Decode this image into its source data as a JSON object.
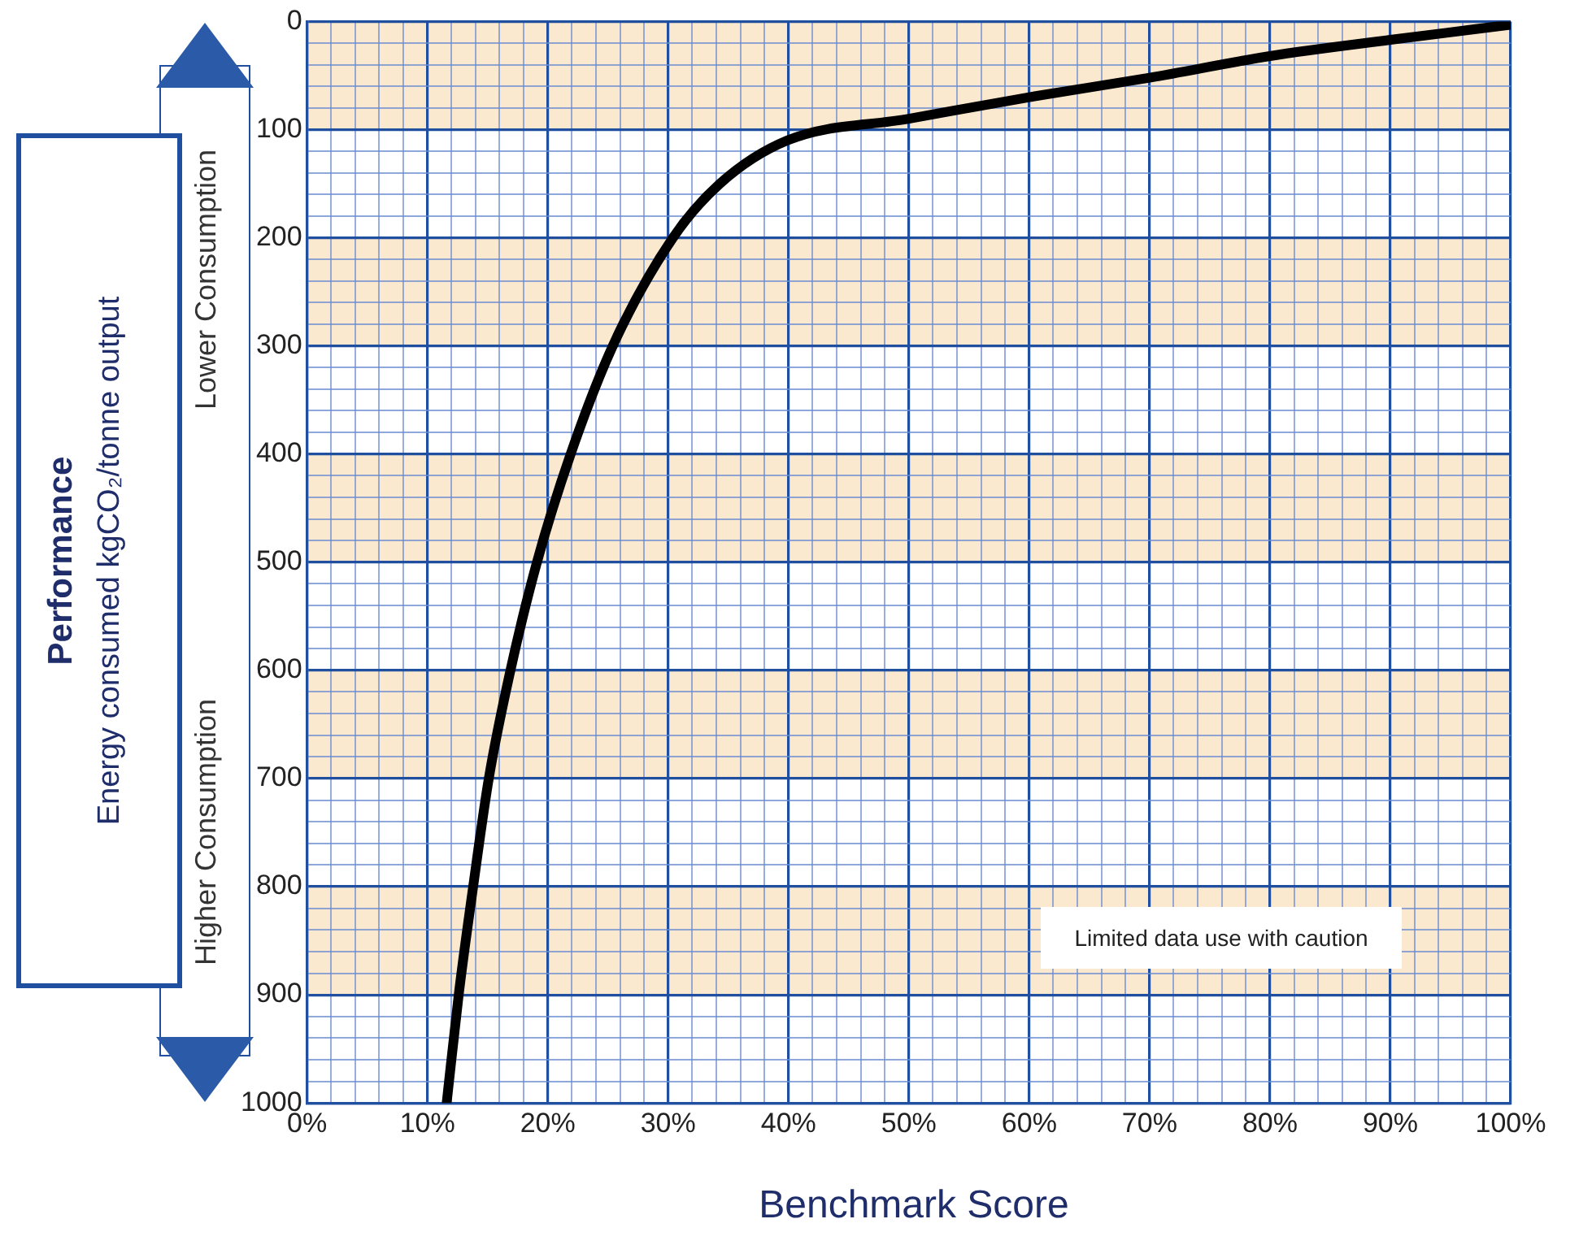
{
  "chart_data": {
    "type": "line",
    "title": "Performance",
    "ylabel": "Energy consumed kgCO₂/tonne output",
    "xlabel": "Benchmark Score",
    "annotations": [
      "Lower Consumption",
      "Higher Consumption",
      "Limited data use with caution"
    ],
    "series": [
      {
        "color": "#000000",
        "x": [
          11.6,
          12.6,
          13.8,
          15.1,
          16.9,
          19.1,
          21.9,
          25.4,
          30.4,
          34.3,
          39.9,
          50,
          60,
          70,
          80,
          90,
          100
        ],
        "values": [
          1000,
          900,
          800,
          700,
          600,
          500,
          400,
          300,
          200,
          150,
          110,
          90,
          70,
          52,
          32,
          17,
          3
        ]
      }
    ],
    "xlim": [
      0,
      100
    ],
    "xticks": [
      {
        "value": 0,
        "label": "0%"
      },
      {
        "value": 2,
        "label": null
      },
      {
        "value": 4,
        "label": null
      },
      {
        "value": 6,
        "label": null
      },
      {
        "value": 8,
        "label": null
      },
      {
        "value": 10,
        "label": "10%"
      },
      {
        "value": 12,
        "label": null
      },
      {
        "value": 14,
        "label": null
      },
      {
        "value": 16,
        "label": null
      },
      {
        "value": 18,
        "label": null
      },
      {
        "value": 20,
        "label": "20%"
      },
      {
        "value": 22,
        "label": null
      },
      {
        "value": 24,
        "label": null
      },
      {
        "value": 26,
        "label": null
      },
      {
        "value": 28,
        "label": null
      },
      {
        "value": 30,
        "label": "30%"
      },
      {
        "value": 32,
        "label": null
      },
      {
        "value": 34,
        "label": null
      },
      {
        "value": 36,
        "label": null
      },
      {
        "value": 38,
        "label": null
      },
      {
        "value": 40,
        "label": "40%"
      },
      {
        "value": 42,
        "label": null
      },
      {
        "value": 44,
        "label": null
      },
      {
        "value": 46,
        "label": null
      },
      {
        "value": 48,
        "label": null
      },
      {
        "value": 50,
        "label": "50%"
      },
      {
        "value": 52,
        "label": null
      },
      {
        "value": 54,
        "label": null
      },
      {
        "value": 56,
        "label": null
      },
      {
        "value": 58,
        "label": null
      },
      {
        "value": 60,
        "label": "60%"
      },
      {
        "value": 62,
        "label": null
      },
      {
        "value": 64,
        "label": null
      },
      {
        "value": 66,
        "label": null
      },
      {
        "value": 68,
        "label": null
      },
      {
        "value": 70,
        "label": "70%"
      },
      {
        "value": 72,
        "label": null
      },
      {
        "value": 74,
        "label": null
      },
      {
        "value": 76,
        "label": null
      },
      {
        "value": 78,
        "label": null
      },
      {
        "value": 80,
        "label": "80%"
      },
      {
        "value": 82,
        "label": null
      },
      {
        "value": 84,
        "label": null
      },
      {
        "value": 86,
        "label": null
      },
      {
        "value": 88,
        "label": null
      },
      {
        "value": 90,
        "label": "90%"
      },
      {
        "value": 92,
        "label": null
      },
      {
        "value": 94,
        "label": null
      },
      {
        "value": 96,
        "label": null
      },
      {
        "value": 98,
        "label": null
      },
      {
        "value": 100,
        "label": "100%"
      }
    ],
    "ylim": [
      1000,
      0
    ],
    "yticks": [
      0,
      {
        "value": 20,
        "label": null
      },
      {
        "value": 40,
        "label": null
      },
      {
        "value": 60,
        "label": null
      },
      {
        "value": 80,
        "label": null
      },
      100,
      {
        "value": 120,
        "label": null
      },
      {
        "value": 140,
        "label": null
      },
      {
        "value": 160,
        "label": null
      },
      {
        "value": 180,
        "label": null
      },
      200,
      {
        "value": 220,
        "label": null
      },
      {
        "value": 240,
        "label": null
      },
      {
        "value": 260,
        "label": null
      },
      {
        "value": 280,
        "label": null
      },
      300,
      {
        "value": 320,
        "label": null
      },
      {
        "value": 340,
        "label": null
      },
      {
        "value": 360,
        "label": null
      },
      {
        "value": 380,
        "label": null
      },
      400,
      {
        "value": 420,
        "label": null
      },
      {
        "value": 440,
        "label": null
      },
      {
        "value": 460,
        "label": null
      },
      {
        "value": 480,
        "label": null
      },
      500,
      {
        "value": 520,
        "label": null
      },
      {
        "value": 540,
        "label": null
      },
      {
        "value": 560,
        "label": null
      },
      {
        "value": 580,
        "label": null
      },
      600,
      {
        "value": 620,
        "label": null
      },
      {
        "value": 640,
        "label": null
      },
      {
        "value": 660,
        "label": null
      },
      {
        "value": 680,
        "label": null
      },
      700,
      {
        "value": 720,
        "label": null
      },
      {
        "value": 740,
        "label": null
      },
      {
        "value": 760,
        "label": null
      },
      {
        "value": 780,
        "label": null
      },
      800,
      {
        "value": 820,
        "label": null
      },
      {
        "value": 840,
        "label": null
      },
      {
        "value": 860,
        "label": null
      },
      {
        "value": 880,
        "label": null
      },
      900,
      {
        "value": 920,
        "label": null
      },
      {
        "value": 940,
        "label": null
      },
      {
        "value": 960,
        "label": null
      },
      {
        "value": 980,
        "label": null
      },
      1000
    ],
    "bands": [
      {
        "axis": "y",
        "from": 0,
        "to": 100,
        "color": "#fbe9cf"
      },
      {
        "axis": "y",
        "from": 200,
        "to": 300,
        "color": "#fbe9cf"
      },
      {
        "axis": "y",
        "from": 400,
        "to": 500,
        "color": "#fbe9cf"
      },
      {
        "axis": "y",
        "from": 600,
        "to": 700,
        "color": "#fbe9cf"
      },
      {
        "axis": "y",
        "from": 800,
        "to": 900,
        "color": "#fbe9cf"
      }
    ],
    "grid": true,
    "legend": false,
    "marker": "none",
    "line_style": "solid"
  }
}
